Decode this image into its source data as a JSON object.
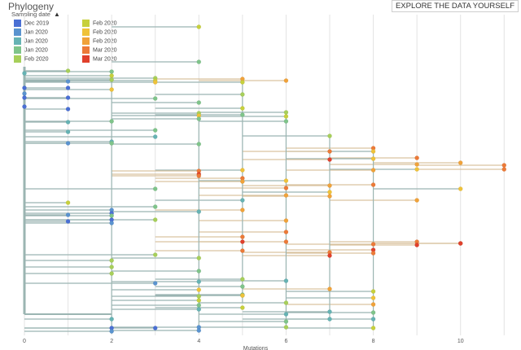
{
  "header": {
    "title": "Phylogeny",
    "explore_button": "EXPLORE THE DATA YOURSELF"
  },
  "legend": {
    "title": "Sampling date",
    "items": [
      {
        "label": "Dec 2019",
        "color": "#4a6fd4"
      },
      {
        "label": "Jan 2020",
        "color": "#5a93cf"
      },
      {
        "label": "Jan 2020",
        "color": "#66b3b4"
      },
      {
        "label": "Jan 2020",
        "color": "#7fc48a"
      },
      {
        "label": "Feb 2020",
        "color": "#a7cf5a"
      },
      {
        "label": "Feb 2020",
        "color": "#c7d03c"
      },
      {
        "label": "Feb 2020",
        "color": "#efc23a"
      },
      {
        "label": "Feb 2020",
        "color": "#f0a23a"
      },
      {
        "label": "Mar 2020",
        "color": "#ec7a38"
      },
      {
        "label": "Mar 2020",
        "color": "#e0402c"
      }
    ]
  },
  "chart_data": {
    "type": "scatter",
    "xlabel": "Mutations",
    "x_ticks": [
      0,
      2,
      4,
      6,
      8,
      10
    ],
    "xlim": [
      0,
      11.2
    ],
    "grid": true,
    "branch_color": "#9bb5b2",
    "highlight_branch_color": "#d9c3a0",
    "series": [
      {
        "color": "#4a6fd4",
        "points": [
          [
            0,
            108
          ],
          [
            0,
            120
          ],
          [
            0,
            131
          ],
          [
            1,
            108
          ],
          [
            1,
            120
          ],
          [
            1,
            134
          ],
          [
            2,
            270
          ],
          [
            2,
            262
          ],
          [
            2,
            403
          ],
          [
            3,
            403
          ],
          [
            1,
            272
          ]
        ]
      },
      {
        "color": "#5a93cf",
        "points": [
          [
            1,
            100
          ],
          [
            1,
            176
          ],
          [
            2,
            274
          ],
          [
            2,
            258
          ],
          [
            3,
            348
          ],
          [
            4,
            406
          ],
          [
            4,
            402
          ],
          [
            1,
            264
          ],
          [
            0,
            115
          ],
          [
            2,
            407
          ]
        ]
      },
      {
        "color": "#66b3b4",
        "points": [
          [
            0,
            90
          ],
          [
            1,
            150
          ],
          [
            1,
            162
          ],
          [
            2,
            174
          ],
          [
            3,
            168
          ],
          [
            4,
            260
          ],
          [
            4,
            346
          ],
          [
            4,
            380
          ],
          [
            5,
            246
          ],
          [
            6,
            345
          ],
          [
            7,
            383
          ],
          [
            7,
            392
          ],
          [
            8,
            392
          ],
          [
            6,
            386
          ],
          [
            2,
            392
          ]
        ]
      },
      {
        "color": "#7fc48a",
        "points": [
          [
            4,
            76
          ],
          [
            2,
            88
          ],
          [
            3,
            121
          ],
          [
            4,
            126
          ],
          [
            2,
            149
          ],
          [
            3,
            160
          ],
          [
            4,
            177
          ],
          [
            5,
            141
          ],
          [
            6,
            149
          ],
          [
            3,
            232
          ],
          [
            2,
            176
          ],
          [
            4,
            333
          ],
          [
            5,
            352
          ],
          [
            6,
            395
          ],
          [
            2,
            265
          ],
          [
            3,
            254
          ],
          [
            4,
            146
          ],
          [
            4,
            375
          ],
          [
            5,
            362
          ],
          [
            8,
            384
          ]
        ]
      },
      {
        "color": "#a7cf5a",
        "points": [
          [
            1,
            87
          ],
          [
            2,
            98
          ],
          [
            3,
            96
          ],
          [
            4,
            139
          ],
          [
            5,
            116
          ],
          [
            6,
            138
          ],
          [
            4,
            317
          ],
          [
            5,
            343
          ],
          [
            2,
            320
          ],
          [
            2,
            328
          ],
          [
            2,
            336
          ],
          [
            7,
            167
          ],
          [
            4,
            364
          ],
          [
            5,
            363
          ],
          [
            6,
            372
          ],
          [
            6,
            402
          ],
          [
            3,
            313
          ],
          [
            3,
            270
          ]
        ]
      },
      {
        "color": "#c7d03c",
        "points": [
          [
            4,
            33
          ],
          [
            2,
            93
          ],
          [
            3,
            99
          ],
          [
            5,
            101
          ],
          [
            1,
            249
          ],
          [
            5,
            133
          ],
          [
            6,
            143
          ],
          [
            8,
            403
          ],
          [
            4,
            369
          ],
          [
            5,
            378
          ],
          [
            8,
            358
          ]
        ]
      },
      {
        "color": "#efc23a",
        "points": [
          [
            2,
            110
          ],
          [
            3,
            101
          ],
          [
            4,
            142
          ],
          [
            5,
            209
          ],
          [
            6,
            222
          ],
          [
            7,
            236
          ],
          [
            8,
            186
          ],
          [
            9,
            208
          ],
          [
            10,
            232
          ],
          [
            8,
            366
          ],
          [
            4,
            356
          ],
          [
            5,
            363
          ],
          [
            8,
            195
          ]
        ]
      },
      {
        "color": "#f0a23a",
        "points": [
          [
            5,
            97
          ],
          [
            6,
            99
          ],
          [
            7,
            228
          ],
          [
            7,
            241
          ],
          [
            8,
            209
          ],
          [
            9,
            202
          ],
          [
            10,
            200
          ],
          [
            5,
            223
          ],
          [
            6,
            240
          ],
          [
            9,
            246
          ],
          [
            5,
            258
          ],
          [
            6,
            271
          ],
          [
            8,
            374
          ],
          [
            7,
            355
          ]
        ]
      },
      {
        "color": "#ec7a38",
        "points": [
          [
            7,
            186
          ],
          [
            8,
            182
          ],
          [
            9,
            194
          ],
          [
            11,
            203
          ],
          [
            11,
            208
          ],
          [
            6,
            285
          ],
          [
            5,
            291
          ],
          [
            8,
            227
          ],
          [
            4,
            210
          ],
          [
            4,
            216
          ],
          [
            5,
            219
          ],
          [
            6,
            231
          ],
          [
            8,
            300
          ],
          [
            9,
            297
          ],
          [
            10,
            299
          ],
          [
            8,
            311
          ],
          [
            7,
            310
          ],
          [
            5,
            308
          ],
          [
            6,
            297
          ]
        ]
      },
      {
        "color": "#e0402c",
        "points": [
          [
            4,
            214
          ],
          [
            7,
            196
          ],
          [
            9,
            301
          ],
          [
            10,
            299
          ],
          [
            8,
            307
          ],
          [
            5,
            297
          ],
          [
            7,
            314
          ]
        ]
      }
    ]
  }
}
